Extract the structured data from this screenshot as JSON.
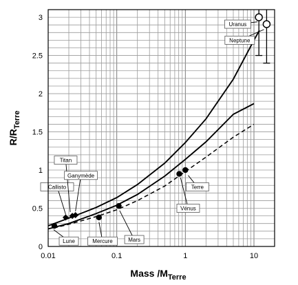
{
  "chart_data": {
    "type": "scatter",
    "title": "",
    "xlabel": "Mass /M",
    "xlabel_sub": "Terre",
    "ylabel": "R/R",
    "ylabel_sub": "Terre",
    "xscale": "log",
    "xlim": [
      0.01,
      20
    ],
    "ylim": [
      0,
      3.1
    ],
    "xticks": [
      0.01,
      0.1,
      1,
      10
    ],
    "xtick_labels": [
      "0.01",
      "0.1",
      "1",
      "10"
    ],
    "yticks": [
      0,
      0.5,
      1,
      1.5,
      2,
      2.5,
      3
    ],
    "ytick_labels": [
      "0",
      "0.5",
      "1",
      "1.5",
      "2",
      "2.5",
      "3"
    ],
    "grid": true,
    "curves": [
      {
        "style": "solid",
        "points": [
          [
            0.01,
            0.27
          ],
          [
            0.02,
            0.37
          ],
          [
            0.05,
            0.51
          ],
          [
            0.1,
            0.64
          ],
          [
            0.2,
            0.81
          ],
          [
            0.5,
            1.09
          ],
          [
            1,
            1.36
          ],
          [
            2,
            1.67
          ],
          [
            5,
            2.19
          ],
          [
            10,
            2.7
          ],
          [
            12,
            2.83
          ]
        ]
      },
      {
        "style": "solid",
        "points": [
          [
            0.01,
            0.23
          ],
          [
            0.02,
            0.3
          ],
          [
            0.05,
            0.43
          ],
          [
            0.1,
            0.54
          ],
          [
            0.2,
            0.68
          ],
          [
            0.5,
            0.92
          ],
          [
            1,
            1.14
          ],
          [
            2,
            1.37
          ],
          [
            5,
            1.73
          ],
          [
            10,
            1.87
          ]
        ]
      },
      {
        "style": "dashed",
        "points": [
          [
            0.012,
            0.24
          ],
          [
            0.02,
            0.29
          ],
          [
            0.05,
            0.39
          ],
          [
            0.1,
            0.48
          ],
          [
            0.2,
            0.6
          ],
          [
            0.5,
            0.79
          ],
          [
            1,
            0.98
          ],
          [
            2,
            1.17
          ],
          [
            5,
            1.43
          ],
          [
            10,
            1.6
          ]
        ]
      }
    ],
    "points": [
      {
        "label": "Lune",
        "x": 0.0123,
        "y": 0.27,
        "marker": "circle-filled",
        "label_x": 0.02,
        "label_y": 0.07,
        "anchor_x": 0.012,
        "anchor_y": 0.22
      },
      {
        "label": "Mercure",
        "x": 0.055,
        "y": 0.38,
        "marker": "circle-filled",
        "label_x": 0.062,
        "label_y": 0.07,
        "anchor_x": 0.055,
        "anchor_y": 0.32
      },
      {
        "label": "Mars",
        "x": 0.107,
        "y": 0.53,
        "marker": "circle-filled",
        "label_x": 0.18,
        "label_y": 0.09,
        "anchor_x": 0.11,
        "anchor_y": 0.47
      },
      {
        "label": "Vénus",
        "x": 0.815,
        "y": 0.95,
        "marker": "circle-filled",
        "label_x": 1.1,
        "label_y": 0.5,
        "anchor_x": 0.85,
        "anchor_y": 0.9
      },
      {
        "label": "Terre",
        "x": 1,
        "y": 1,
        "marker": "circle-filled",
        "label_x": 1.5,
        "label_y": 0.78,
        "anchor_x": 1.1,
        "anchor_y": 0.93
      },
      {
        "label": "Callisto",
        "x": 0.018,
        "y": 0.38,
        "marker": "diamond-filled",
        "label_x": 0.0135,
        "label_y": 0.78,
        "anchor_x": 0.018,
        "anchor_y": 0.42
      },
      {
        "label": "Titan",
        "x": 0.0225,
        "y": 0.4,
        "marker": "diamond-filled",
        "label_x": 0.018,
        "label_y": 1.13,
        "anchor_x": 0.021,
        "anchor_y": 0.45
      },
      {
        "label": "Ganymède",
        "x": 0.025,
        "y": 0.41,
        "marker": "diamond-filled",
        "label_x": 0.03,
        "label_y": 0.93,
        "anchor_x": 0.025,
        "anchor_y": 0.46
      },
      {
        "label": "Uranus",
        "x": 11.8,
        "y": 3.0,
        "marker": "circle-open",
        "label_x": 5.8,
        "label_y": 2.91,
        "anchor_x": 11.2,
        "anchor_y": 2.94,
        "yerr": [
          2.5,
          3.1
        ]
      },
      {
        "label": "Neptune",
        "x": 15.3,
        "y": 2.91,
        "marker": "circle-open",
        "label_x": 6.2,
        "label_y": 2.7,
        "anchor_x": 14.0,
        "anchor_y": 2.84,
        "yerr": [
          2.4,
          3.1
        ]
      }
    ]
  }
}
